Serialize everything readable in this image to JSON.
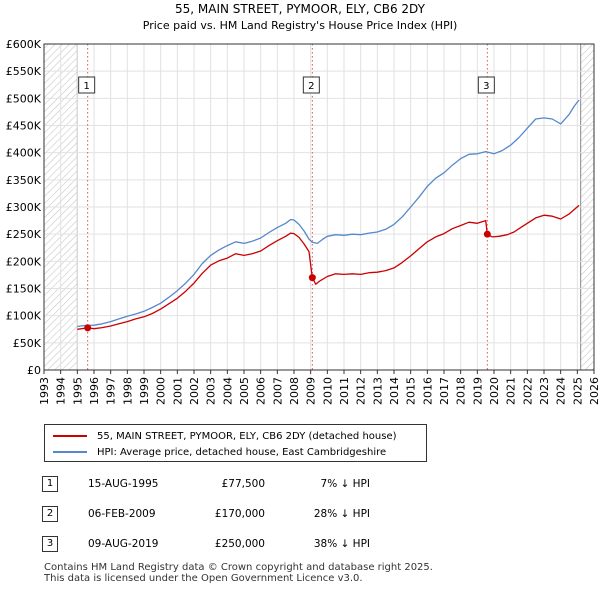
{
  "chart_data": {
    "type": "line",
    "title": "55, MAIN STREET, PYMOOR, ELY, CB6 2DY",
    "subtitle": "Price paid vs. HM Land Registry's House Price Index (HPI)",
    "xlim": [
      1993,
      2026
    ],
    "ylim": [
      0,
      600000
    ],
    "x_ticks": [
      1993,
      1994,
      1995,
      1996,
      1997,
      1998,
      1999,
      2000,
      2001,
      2002,
      2003,
      2004,
      2005,
      2006,
      2007,
      2008,
      2009,
      2010,
      2011,
      2012,
      2013,
      2014,
      2015,
      2016,
      2017,
      2018,
      2019,
      2020,
      2021,
      2022,
      2023,
      2024,
      2025,
      2026
    ],
    "y_ticks": [
      0,
      50000,
      100000,
      150000,
      200000,
      250000,
      300000,
      350000,
      400000,
      450000,
      500000,
      550000,
      600000
    ],
    "y_tick_labels": [
      "£0",
      "£50K",
      "£100K",
      "£150K",
      "£200K",
      "£250K",
      "£300K",
      "£350K",
      "£400K",
      "£450K",
      "£500K",
      "£550K",
      "£600K"
    ],
    "grid": true,
    "hatched_ranges": [
      [
        1993,
        1995.0
      ],
      [
        2025.2,
        2026
      ]
    ],
    "series": [
      {
        "name": "55, MAIN STREET, PYMOOR, ELY, CB6 2DY (detached house)",
        "color": "#cc0000",
        "points": [
          [
            1995.0,
            75000
          ],
          [
            1995.62,
            77500
          ],
          [
            1996.0,
            76000
          ],
          [
            1996.5,
            78000
          ],
          [
            1997.0,
            81000
          ],
          [
            1997.5,
            85000
          ],
          [
            1998.0,
            89000
          ],
          [
            1998.5,
            94000
          ],
          [
            1999.0,
            98000
          ],
          [
            1999.5,
            104000
          ],
          [
            2000.0,
            112000
          ],
          [
            2000.5,
            122000
          ],
          [
            2001.0,
            132000
          ],
          [
            2001.5,
            145000
          ],
          [
            2002.0,
            160000
          ],
          [
            2002.5,
            178000
          ],
          [
            2003.0,
            193000
          ],
          [
            2003.5,
            201000
          ],
          [
            2004.0,
            206000
          ],
          [
            2004.5,
            214000
          ],
          [
            2005.0,
            211000
          ],
          [
            2005.5,
            214000
          ],
          [
            2006.0,
            219000
          ],
          [
            2006.5,
            229000
          ],
          [
            2007.0,
            238000
          ],
          [
            2007.5,
            246000
          ],
          [
            2007.8,
            252000
          ],
          [
            2008.0,
            251000
          ],
          [
            2008.3,
            244000
          ],
          [
            2008.6,
            232000
          ],
          [
            2008.9,
            218000
          ],
          [
            2009.1,
            170000
          ],
          [
            2009.3,
            158000
          ],
          [
            2009.6,
            165000
          ],
          [
            2010.0,
            172000
          ],
          [
            2010.5,
            177000
          ],
          [
            2011.0,
            176000
          ],
          [
            2011.5,
            177000
          ],
          [
            2012.0,
            176000
          ],
          [
            2012.5,
            179000
          ],
          [
            2013.0,
            180000
          ],
          [
            2013.5,
            183000
          ],
          [
            2014.0,
            188000
          ],
          [
            2014.5,
            198000
          ],
          [
            2015.0,
            210000
          ],
          [
            2015.5,
            223000
          ],
          [
            2016.0,
            236000
          ],
          [
            2016.5,
            245000
          ],
          [
            2017.0,
            251000
          ],
          [
            2017.5,
            260000
          ],
          [
            2018.0,
            266000
          ],
          [
            2018.5,
            272000
          ],
          [
            2019.0,
            270000
          ],
          [
            2019.5,
            275000
          ],
          [
            2019.6,
            250000
          ],
          [
            2019.9,
            245000
          ],
          [
            2020.3,
            246000
          ],
          [
            2020.8,
            249000
          ],
          [
            2021.2,
            254000
          ],
          [
            2021.6,
            262000
          ],
          [
            2022.0,
            270000
          ],
          [
            2022.5,
            280000
          ],
          [
            2023.0,
            285000
          ],
          [
            2023.5,
            283000
          ],
          [
            2024.0,
            278000
          ],
          [
            2024.5,
            287000
          ],
          [
            2024.8,
            295000
          ],
          [
            2025.1,
            303000
          ]
        ]
      },
      {
        "name": "HPI: Average price, detached house, East Cambridgeshire",
        "color": "#5588cc",
        "points": [
          [
            1995.0,
            80000
          ],
          [
            1995.5,
            82000
          ],
          [
            1996.0,
            82500
          ],
          [
            1996.5,
            85000
          ],
          [
            1997.0,
            89000
          ],
          [
            1997.5,
            94000
          ],
          [
            1998.0,
            99000
          ],
          [
            1998.5,
            103000
          ],
          [
            1999.0,
            108000
          ],
          [
            1999.5,
            115000
          ],
          [
            2000.0,
            123000
          ],
          [
            2000.5,
            134000
          ],
          [
            2001.0,
            146000
          ],
          [
            2001.5,
            160000
          ],
          [
            2002.0,
            176000
          ],
          [
            2002.5,
            196000
          ],
          [
            2003.0,
            211000
          ],
          [
            2003.5,
            221000
          ],
          [
            2004.0,
            229000
          ],
          [
            2004.5,
            236000
          ],
          [
            2005.0,
            233000
          ],
          [
            2005.5,
            237000
          ],
          [
            2006.0,
            243000
          ],
          [
            2006.5,
            253000
          ],
          [
            2007.0,
            262000
          ],
          [
            2007.5,
            270000
          ],
          [
            2007.8,
            277000
          ],
          [
            2008.0,
            276000
          ],
          [
            2008.3,
            268000
          ],
          [
            2008.6,
            256000
          ],
          [
            2008.9,
            241000
          ],
          [
            2009.1,
            235000
          ],
          [
            2009.4,
            233000
          ],
          [
            2009.7,
            240000
          ],
          [
            2010.0,
            246000
          ],
          [
            2010.5,
            249000
          ],
          [
            2011.0,
            248000
          ],
          [
            2011.5,
            250000
          ],
          [
            2012.0,
            249000
          ],
          [
            2012.5,
            252000
          ],
          [
            2013.0,
            254000
          ],
          [
            2013.5,
            259000
          ],
          [
            2014.0,
            268000
          ],
          [
            2014.5,
            282000
          ],
          [
            2015.0,
            300000
          ],
          [
            2015.5,
            318000
          ],
          [
            2016.0,
            338000
          ],
          [
            2016.5,
            353000
          ],
          [
            2017.0,
            363000
          ],
          [
            2017.5,
            377000
          ],
          [
            2018.0,
            389000
          ],
          [
            2018.5,
            397000
          ],
          [
            2019.0,
            398000
          ],
          [
            2019.5,
            402000
          ],
          [
            2020.0,
            398000
          ],
          [
            2020.5,
            404000
          ],
          [
            2021.0,
            414000
          ],
          [
            2021.5,
            428000
          ],
          [
            2022.0,
            445000
          ],
          [
            2022.5,
            462000
          ],
          [
            2023.0,
            464000
          ],
          [
            2023.5,
            462000
          ],
          [
            2024.0,
            453000
          ],
          [
            2024.5,
            470000
          ],
          [
            2024.8,
            485000
          ],
          [
            2025.1,
            497000
          ]
        ]
      }
    ],
    "markers": [
      {
        "label": "1",
        "x": 1995.62,
        "y": 77500
      },
      {
        "label": "2",
        "x": 2009.1,
        "y": 170000
      },
      {
        "label": "3",
        "x": 2019.6,
        "y": 250000
      }
    ]
  },
  "legend": {
    "property_label": "55, MAIN STREET, PYMOOR, ELY, CB6 2DY (detached house)",
    "hpi_label": "HPI: Average price, detached house, East Cambridgeshire",
    "property_color": "#cc0000",
    "hpi_color": "#5588cc"
  },
  "sales": [
    {
      "num": "1",
      "date": "15-AUG-1995",
      "price": "£77,500",
      "hpi": "7% ↓ HPI"
    },
    {
      "num": "2",
      "date": "06-FEB-2009",
      "price": "£170,000",
      "hpi": "28% ↓ HPI"
    },
    {
      "num": "3",
      "date": "09-AUG-2019",
      "price": "£250,000",
      "hpi": "38% ↓ HPI"
    }
  ],
  "footer": {
    "line1": "Contains HM Land Registry data © Crown copyright and database right 2025.",
    "line2": "This data is licensed under the Open Government Licence v3.0."
  }
}
